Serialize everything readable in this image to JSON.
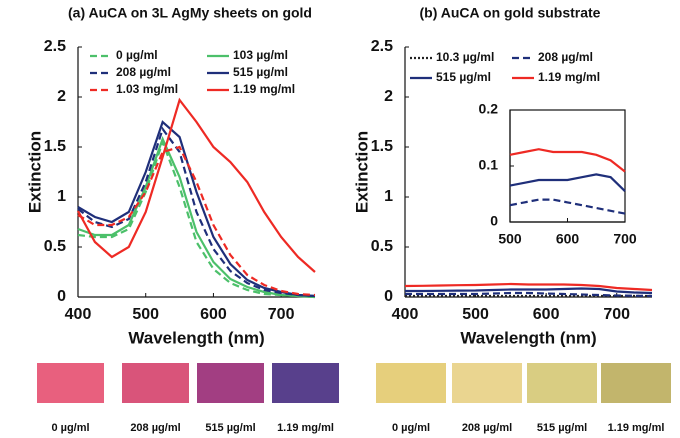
{
  "chart_data": [
    {
      "type": "line",
      "title": "(a) AuCA on 3L AgMy sheets on gold",
      "x_label": "Wavelength (nm)",
      "y_label": "Extinction",
      "xlim": [
        400,
        750
      ],
      "xticks": [
        400,
        500,
        600,
        700
      ],
      "ylim": [
        0,
        2.5
      ],
      "yticks": [
        0,
        0.5,
        1,
        1.5,
        2,
        2.5
      ],
      "x": [
        400,
        425,
        450,
        475,
        500,
        525,
        550,
        575,
        600,
        625,
        650,
        675,
        700,
        725,
        750
      ],
      "series": [
        {
          "name": "0 µg/ml",
          "color": "#4cc06a",
          "style": "dashed",
          "values": [
            0.62,
            0.6,
            0.6,
            0.68,
            1.05,
            1.55,
            1.1,
            0.55,
            0.28,
            0.14,
            0.07,
            0.03,
            0.02,
            0.01,
            0
          ]
        },
        {
          "name": "103 µg/ml",
          "color": "#4cc06a",
          "style": "solid",
          "values": [
            0.68,
            0.62,
            0.62,
            0.72,
            1.1,
            1.58,
            1.2,
            0.65,
            0.35,
            0.18,
            0.1,
            0.05,
            0.02,
            0.01,
            0
          ]
        },
        {
          "name": "208 µg/ml",
          "color": "#1f2f7a",
          "style": "dashed",
          "values": [
            0.88,
            0.75,
            0.7,
            0.78,
            1.15,
            1.68,
            1.45,
            0.85,
            0.48,
            0.26,
            0.14,
            0.07,
            0.04,
            0.02,
            0.01
          ]
        },
        {
          "name": "515 µg/ml",
          "color": "#1f2f7a",
          "style": "solid",
          "values": [
            0.9,
            0.8,
            0.75,
            0.85,
            1.25,
            1.75,
            1.6,
            1.05,
            0.6,
            0.33,
            0.17,
            0.09,
            0.05,
            0.02,
            0.01
          ]
        },
        {
          "name": "1.03 mg/ml",
          "color": "#ee2a24",
          "style": "dashed",
          "values": [
            0.82,
            0.72,
            0.72,
            0.8,
            1.05,
            1.45,
            1.5,
            1.15,
            0.72,
            0.42,
            0.22,
            0.12,
            0.06,
            0.03,
            0.02
          ]
        },
        {
          "name": "1.19 mg/ml",
          "color": "#ee2a24",
          "style": "solid",
          "values": [
            0.86,
            0.55,
            0.4,
            0.5,
            0.85,
            1.4,
            1.97,
            1.75,
            1.5,
            1.35,
            1.15,
            0.85,
            0.6,
            0.4,
            0.25
          ]
        }
      ],
      "swatches": [
        {
          "label": "0 µg/ml",
          "color": "#e8607e"
        },
        {
          "label": "208 µg/ml",
          "color": "#d9547a"
        },
        {
          "label": "515 µg/ml",
          "color": "#a23e82"
        },
        {
          "label": "1.19 mg/ml",
          "color": "#58408c"
        }
      ]
    },
    {
      "type": "line",
      "title": "(b) AuCA on gold substrate",
      "x_label": "Wavelength (nm)",
      "y_label": "Extinction",
      "xlim": [
        400,
        750
      ],
      "xticks": [
        400,
        500,
        600,
        700
      ],
      "ylim": [
        0,
        2.5
      ],
      "yticks": [
        0,
        0.5,
        1,
        1.5,
        2,
        2.5
      ],
      "x": [
        400,
        425,
        450,
        475,
        500,
        525,
        550,
        575,
        600,
        625,
        650,
        675,
        700,
        725,
        750
      ],
      "series": [
        {
          "name": "10.3 µg/ml",
          "color": "#222222",
          "style": "dotted",
          "values": [
            0.01,
            0.01,
            0.01,
            0.01,
            0.01,
            0.01,
            0.01,
            0.01,
            0.01,
            0.01,
            0.01,
            0.01,
            0.01,
            0.01,
            0.01
          ]
        },
        {
          "name": "208 µg/ml",
          "color": "#1f2f7a",
          "style": "dashed",
          "values": [
            0.03,
            0.03,
            0.03,
            0.03,
            0.03,
            0.035,
            0.04,
            0.04,
            0.035,
            0.03,
            0.025,
            0.02,
            0.015,
            0.012,
            0.01
          ]
        },
        {
          "name": "515 µg/ml",
          "color": "#1f2f7a",
          "style": "solid",
          "values": [
            0.06,
            0.06,
            0.062,
            0.064,
            0.065,
            0.07,
            0.075,
            0.075,
            0.075,
            0.08,
            0.085,
            0.08,
            0.055,
            0.045,
            0.04
          ]
        },
        {
          "name": "1.19 mg/ml",
          "color": "#ee2a24",
          "style": "solid",
          "values": [
            0.11,
            0.112,
            0.115,
            0.118,
            0.12,
            0.125,
            0.13,
            0.125,
            0.125,
            0.125,
            0.12,
            0.11,
            0.09,
            0.08,
            0.07
          ]
        }
      ],
      "swatches": [
        {
          "label": "0 µg/ml",
          "color": "#e6cf7c"
        },
        {
          "label": "208 µg/ml",
          "color": "#ead590"
        },
        {
          "label": "515 µg/ml",
          "color": "#d9cd82"
        },
        {
          "label": "1.19 mg/ml",
          "color": "#c2b56c"
        }
      ]
    },
    {
      "type": "line",
      "xlim": [
        500,
        700
      ],
      "xticks": [
        500,
        600,
        700
      ],
      "ylim": [
        0,
        0.2
      ],
      "yticks": [
        0,
        0.1,
        0.2
      ],
      "x": [
        500,
        525,
        550,
        575,
        600,
        625,
        650,
        675,
        700
      ],
      "series": [
        {
          "color": "#1f2f7a",
          "style": "dashed",
          "values": [
            0.03,
            0.035,
            0.04,
            0.04,
            0.035,
            0.03,
            0.025,
            0.02,
            0.015
          ]
        },
        {
          "color": "#1f2f7a",
          "style": "solid",
          "values": [
            0.065,
            0.07,
            0.075,
            0.075,
            0.075,
            0.08,
            0.085,
            0.08,
            0.055
          ]
        },
        {
          "color": "#ee2a24",
          "style": "solid",
          "values": [
            0.12,
            0.125,
            0.13,
            0.125,
            0.125,
            0.125,
            0.12,
            0.11,
            0.09
          ]
        }
      ]
    }
  ]
}
